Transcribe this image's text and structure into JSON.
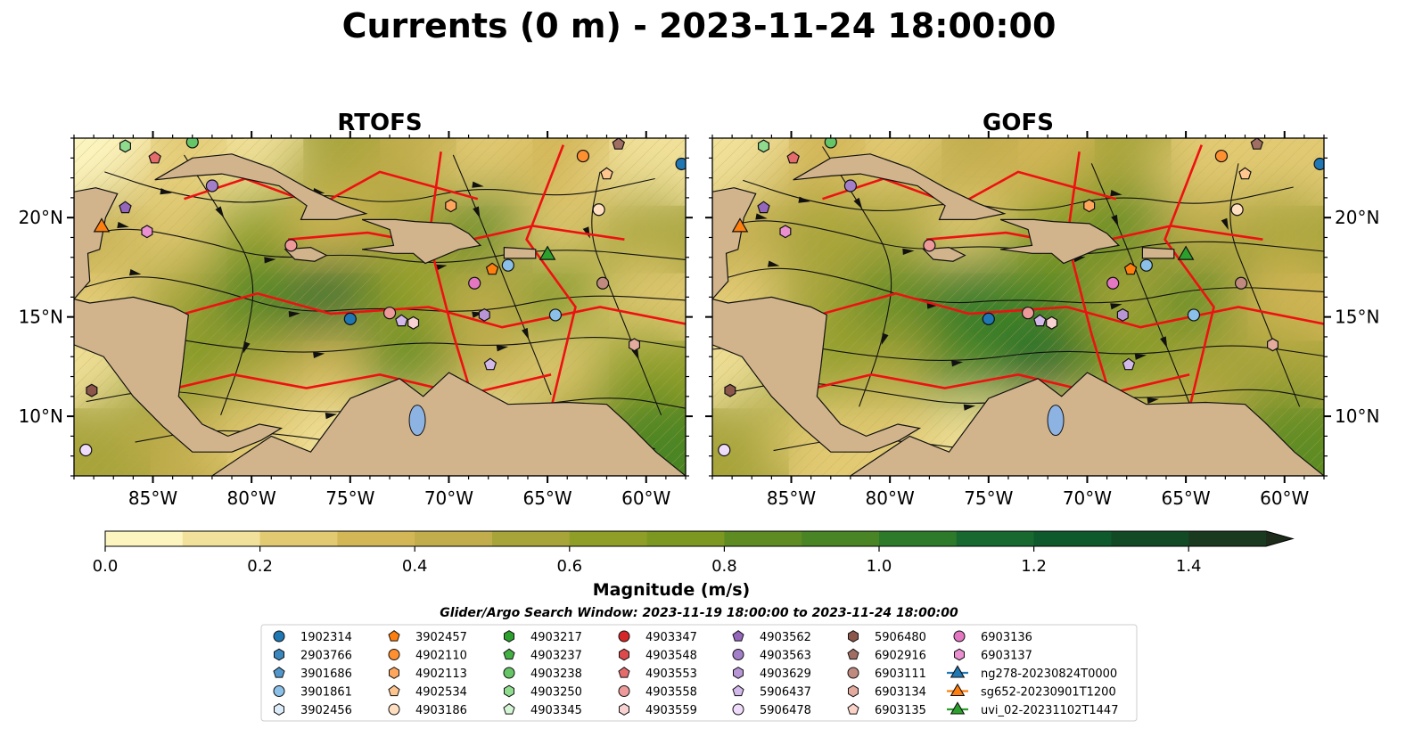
{
  "title": "Currents (0 m) - 2023-11-24 18:00:00",
  "panels": [
    {
      "title": "RTOFS",
      "mesh": [
        [
          0.05,
          0.3,
          0.15,
          0.55,
          0.42,
          0.25,
          0.35,
          0.12
        ],
        [
          0.45,
          0.2,
          0.7,
          0.35,
          0.5,
          0.8,
          0.3,
          0.6
        ],
        [
          0.25,
          0.55,
          0.95,
          1.1,
          0.62,
          0.4,
          0.75,
          0.22
        ],
        [
          0.1,
          0.78,
          0.55,
          0.35,
          0.88,
          0.45,
          0.3,
          0.65
        ],
        [
          0.6,
          0.4,
          0.2,
          0.1,
          0.25,
          0.15,
          0.55,
          0.9
        ]
      ]
    },
    {
      "title": "GOFS",
      "mesh": [
        [
          0.1,
          0.35,
          0.25,
          0.45,
          0.38,
          0.55,
          0.3,
          0.2
        ],
        [
          0.4,
          0.6,
          0.5,
          0.3,
          0.7,
          0.85,
          0.45,
          0.5
        ],
        [
          0.2,
          0.5,
          0.85,
          1.05,
          0.95,
          0.6,
          0.8,
          0.35
        ],
        [
          0.15,
          0.7,
          0.6,
          0.9,
          1.2,
          0.75,
          0.5,
          0.55
        ],
        [
          0.5,
          0.3,
          0.25,
          0.15,
          0.3,
          0.2,
          0.45,
          0.8
        ]
      ]
    }
  ],
  "chart_data": {
    "type": "heatmap",
    "title": "Currents (0 m) - 2023-11-24 18:00:00",
    "variable": "Magnitude (m/s)",
    "xlim": [
      -89,
      -58
    ],
    "ylim": [
      7,
      24
    ],
    "x_ticks": [
      "85°W",
      "80°W",
      "75°W",
      "70°W",
      "65°W",
      "60°W"
    ],
    "x_tick_values": [
      -85,
      -80,
      -75,
      -70,
      -65,
      -60
    ],
    "y_ticks": [
      "10°N",
      "15°N",
      "20°N"
    ],
    "y_tick_values": [
      10,
      15,
      20
    ],
    "colorbar": {
      "label": "Magnitude (m/s)",
      "min": 0.0,
      "max": 1.5,
      "step": 0.1,
      "extend": "max",
      "ticks": [
        "0.0",
        "0.2",
        "0.4",
        "0.6",
        "0.8",
        "1.0",
        "1.2",
        "1.4"
      ],
      "tick_values": [
        0.0,
        0.2,
        0.4,
        0.6,
        0.8,
        1.0,
        1.2,
        1.4
      ],
      "colors": [
        "#fdf5c0",
        "#f1e19a",
        "#e2ca73",
        "#d3b656",
        "#c1ad4c",
        "#a7a43a",
        "#8f9e27",
        "#7c9820",
        "#5e8c23",
        "#4a8525",
        "#2d7a2b",
        "#17692f",
        "#0f5a2c",
        "#134a26",
        "#1a3a20"
      ],
      "extend_color": "#1c2b1a"
    },
    "search_window": "Glider/Argo Search Window: 2023-11-19 18:00:00 to 2023-11-24 18:00:00",
    "legend": [
      {
        "label": "1902314",
        "marker": "circle",
        "color": "#1f77b4"
      },
      {
        "label": "2903766",
        "marker": "hexagon",
        "color": "#3a87bf"
      },
      {
        "label": "3901686",
        "marker": "pentagon",
        "color": "#5197cb"
      },
      {
        "label": "3901861",
        "marker": "circle",
        "color": "#8bc0e8"
      },
      {
        "label": "3902456",
        "marker": "hexagon",
        "color": "#dcecf8"
      },
      {
        "label": "3902457",
        "marker": "pentagon",
        "color": "#ff7f0e"
      },
      {
        "label": "4902110",
        "marker": "circle",
        "color": "#ff902f"
      },
      {
        "label": "4902113",
        "marker": "hexagon",
        "color": "#ffa65c"
      },
      {
        "label": "4902534",
        "marker": "pentagon",
        "color": "#ffc58f"
      },
      {
        "label": "4903186",
        "marker": "circle",
        "color": "#ffdfbf"
      },
      {
        "label": "4903217",
        "marker": "hexagon",
        "color": "#2ca02c"
      },
      {
        "label": "4903237",
        "marker": "pentagon",
        "color": "#43b043"
      },
      {
        "label": "4903238",
        "marker": "circle",
        "color": "#66c566"
      },
      {
        "label": "4903250",
        "marker": "hexagon",
        "color": "#8fdc8f"
      },
      {
        "label": "4903345",
        "marker": "pentagon",
        "color": "#d4f6d4"
      },
      {
        "label": "4903347",
        "marker": "circle",
        "color": "#d62728"
      },
      {
        "label": "4903548",
        "marker": "hexagon",
        "color": "#de4a4b"
      },
      {
        "label": "4903553",
        "marker": "pentagon",
        "color": "#e56c6c"
      },
      {
        "label": "4903558",
        "marker": "circle",
        "color": "#ef9a9a"
      },
      {
        "label": "4903559",
        "marker": "hexagon",
        "color": "#f8d2d2"
      },
      {
        "label": "4903562",
        "marker": "pentagon",
        "color": "#9467bd"
      },
      {
        "label": "4903563",
        "marker": "circle",
        "color": "#a47fc9"
      },
      {
        "label": "4903629",
        "marker": "hexagon",
        "color": "#b896d6"
      },
      {
        "label": "5906437",
        "marker": "pentagon",
        "color": "#d3b9ea"
      },
      {
        "label": "5906478",
        "marker": "circle",
        "color": "#efdcfb"
      },
      {
        "label": "5906480",
        "marker": "hexagon",
        "color": "#8c564b"
      },
      {
        "label": "6902916",
        "marker": "pentagon",
        "color": "#a06e63"
      },
      {
        "label": "6903111",
        "marker": "circle",
        "color": "#c08a7f"
      },
      {
        "label": "6903134",
        "marker": "hexagon",
        "color": "#e2ab9e"
      },
      {
        "label": "6903135",
        "marker": "pentagon",
        "color": "#fad2c8"
      },
      {
        "label": "6903136",
        "marker": "circle",
        "color": "#e377c2"
      },
      {
        "label": "6903137",
        "marker": "hexagon",
        "color": "#ea8fd0"
      },
      {
        "label": "ng278-20230824T0000",
        "marker": "triangle-line",
        "color": "#1f77b4"
      },
      {
        "label": "sg652-20230901T1200",
        "marker": "triangle-line",
        "color": "#ff7f0e"
      },
      {
        "label": "uvi_02-20231102T1447",
        "marker": "triangle-line",
        "color": "#2ca02c"
      }
    ],
    "observations": [
      {
        "label": "1902314",
        "lon": -75.0,
        "lat": 14.9,
        "marker": "circle",
        "color": "#1f77b4"
      },
      {
        "label": "3901861",
        "lon": -67.0,
        "lat": 17.6,
        "marker": "circle",
        "color": "#8bc0e8"
      },
      {
        "label": "3901861",
        "lon": -64.6,
        "lat": 15.1,
        "marker": "circle",
        "color": "#8bc0e8"
      },
      {
        "label": "3902457",
        "lon": -67.8,
        "lat": 17.4,
        "marker": "pentagon",
        "color": "#ff7f0e"
      },
      {
        "label": "4902110",
        "lon": -63.2,
        "lat": 23.1,
        "marker": "circle",
        "color": "#ff902f"
      },
      {
        "label": "4902113",
        "lon": -69.9,
        "lat": 20.6,
        "marker": "hexagon",
        "color": "#ffa65c"
      },
      {
        "label": "4902534",
        "lon": -62.0,
        "lat": 22.2,
        "marker": "pentagon",
        "color": "#ffc58f"
      },
      {
        "label": "4903186",
        "lon": -62.4,
        "lat": 20.4,
        "marker": "circle",
        "color": "#ffdfbf"
      },
      {
        "label": "4903250",
        "lon": -86.4,
        "lat": 23.6,
        "marker": "hexagon",
        "color": "#8fdc8f"
      },
      {
        "label": "4903238",
        "lon": -83.0,
        "lat": 23.8,
        "marker": "circle",
        "color": "#66c566"
      },
      {
        "label": "4903553",
        "lon": -84.9,
        "lat": 23.0,
        "marker": "pentagon",
        "color": "#e56c6c"
      },
      {
        "label": "4903558",
        "lon": -78.0,
        "lat": 18.6,
        "marker": "circle",
        "color": "#ef9a9a"
      },
      {
        "label": "4903558",
        "lon": -73.0,
        "lat": 15.2,
        "marker": "circle",
        "color": "#ef9a9a"
      },
      {
        "label": "4903559",
        "lon": -71.8,
        "lat": 14.7,
        "marker": "hexagon",
        "color": "#f8d2d2"
      },
      {
        "label": "4903562",
        "lon": -86.4,
        "lat": 20.5,
        "marker": "pentagon",
        "color": "#9467bd"
      },
      {
        "label": "4903563",
        "lon": -82.0,
        "lat": 21.6,
        "marker": "circle",
        "color": "#a47fc9"
      },
      {
        "label": "4903629",
        "lon": -68.2,
        "lat": 15.1,
        "marker": "hexagon",
        "color": "#b896d6"
      },
      {
        "label": "5906437",
        "lon": -72.4,
        "lat": 14.8,
        "marker": "pentagon",
        "color": "#d3b9ea"
      },
      {
        "label": "5906437",
        "lon": -67.9,
        "lat": 12.6,
        "marker": "pentagon",
        "color": "#d3b9ea"
      },
      {
        "label": "5906478",
        "lon": -88.4,
        "lat": 8.3,
        "marker": "circle",
        "color": "#efdcfb"
      },
      {
        "label": "5906480",
        "lon": -88.1,
        "lat": 11.3,
        "marker": "hexagon",
        "color": "#8c564b"
      },
      {
        "label": "6902916",
        "lon": -61.4,
        "lat": 23.7,
        "marker": "pentagon",
        "color": "#a06e63"
      },
      {
        "label": "6903111",
        "lon": -62.2,
        "lat": 16.7,
        "marker": "circle",
        "color": "#c08a7f"
      },
      {
        "label": "6903134",
        "lon": -60.6,
        "lat": 13.6,
        "marker": "hexagon",
        "color": "#e2ab9e"
      },
      {
        "label": "6903136",
        "lon": -68.7,
        "lat": 16.7,
        "marker": "circle",
        "color": "#e377c2"
      },
      {
        "label": "6903137",
        "lon": -85.3,
        "lat": 19.3,
        "marker": "hexagon",
        "color": "#ea8fd0"
      },
      {
        "label": "ng278-20230824T0000",
        "lon": -58.2,
        "lat": 22.7,
        "marker": "circle",
        "color": "#1f77b4"
      },
      {
        "label": "sg652-20230901T1200",
        "lon": -87.6,
        "lat": 19.6,
        "marker": "triangle",
        "color": "#ff7f0e"
      },
      {
        "label": "uvi_02-20231102T1447",
        "lon": -65.0,
        "lat": 18.2,
        "marker": "triangle",
        "color": "#2ca02c"
      }
    ]
  }
}
